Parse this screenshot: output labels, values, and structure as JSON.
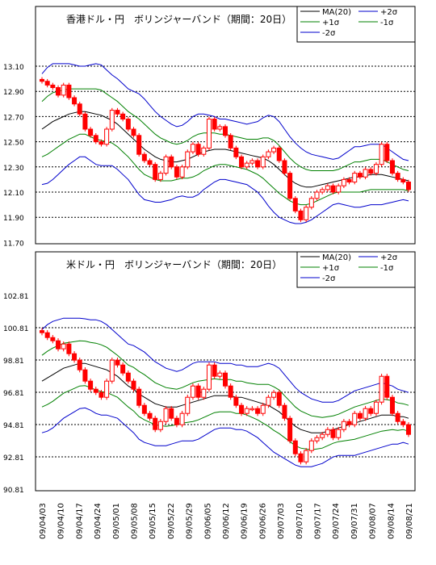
{
  "charts": [
    {
      "title": "香港ドル・円　ボリンジャーバンド（期間：20日）",
      "legend": [
        "MA(20)",
        "+2σ",
        "+1σ",
        "-1σ",
        "-2σ"
      ],
      "yticks": [
        "13.10",
        "12.90",
        "12.70",
        "12.50",
        "12.30",
        "12.10",
        "11.90",
        "11.70"
      ]
    },
    {
      "title": "米ドル・円　ボリンジャーバンド（期間：20日）",
      "legend": [
        "MA(20)",
        "+2σ",
        "+1σ",
        "-1σ",
        "-2σ"
      ],
      "yticks": [
        "102.81",
        "100.81",
        "98.81",
        "96.81",
        "94.81",
        "92.81",
        "90.81"
      ]
    }
  ],
  "xticks": [
    "09/04/03",
    "09/04/10",
    "09/04/17",
    "09/04/24",
    "09/05/01",
    "09/05/08",
    "09/05/15",
    "09/05/22",
    "09/05/29",
    "09/06/05",
    "09/06/12",
    "09/06/19",
    "09/06/26",
    "09/07/03",
    "09/07/10",
    "09/07/17",
    "09/07/24",
    "09/07/31",
    "09/08/07",
    "09/08/14",
    "09/08/21"
  ],
  "colors": {
    "candle": "#ff0000",
    "ma": "#000000",
    "band2": "#0000cc",
    "band1": "#008000",
    "grid": "#000000"
  },
  "chart_data": [
    {
      "type": "candlestick",
      "title": "香港ドル・円　ボリンジャーバンド（期間：20日）",
      "ylim": [
        11.7,
        13.2
      ],
      "series_names": [
        "MA(20)",
        "+2σ",
        "+1σ",
        "-1σ",
        "-2σ"
      ],
      "close": [
        12.98,
        12.95,
        12.93,
        12.87,
        12.95,
        12.85,
        12.8,
        12.72,
        12.6,
        12.55,
        12.5,
        12.48,
        12.6,
        12.75,
        12.72,
        12.68,
        12.6,
        12.55,
        12.4,
        12.35,
        12.32,
        12.2,
        12.25,
        12.38,
        12.3,
        12.22,
        12.3,
        12.42,
        12.48,
        12.4,
        12.45,
        12.68,
        12.6,
        12.62,
        12.55,
        12.45,
        12.38,
        12.3,
        12.33,
        12.35,
        12.3,
        12.38,
        12.42,
        12.45,
        12.35,
        12.25,
        12.05,
        11.95,
        11.88,
        11.98,
        12.05,
        12.1,
        12.12,
        12.15,
        12.1,
        12.15,
        12.2,
        12.18,
        12.25,
        12.22,
        12.28,
        12.25,
        12.32,
        12.48,
        12.35,
        12.25,
        12.2,
        12.18,
        12.12
      ],
      "ma20": [
        12.6,
        12.63,
        12.66,
        12.68,
        12.7,
        12.72,
        12.73,
        12.74,
        12.74,
        12.73,
        12.72,
        12.71,
        12.69,
        12.67,
        12.64,
        12.6,
        12.56,
        12.52,
        12.48,
        12.44,
        12.41,
        12.38,
        12.36,
        12.35,
        12.34,
        12.34,
        12.35,
        12.36,
        12.38,
        12.4,
        12.42,
        12.43,
        12.44,
        12.44,
        12.44,
        12.43,
        12.42,
        12.41,
        12.4,
        12.39,
        12.38,
        12.37,
        12.35,
        12.32,
        12.28,
        12.24,
        12.2,
        12.17,
        12.15,
        12.14,
        12.14,
        12.15,
        12.16,
        12.17,
        12.18,
        12.19,
        12.2,
        12.21,
        12.22,
        12.22,
        12.23,
        12.24,
        12.24,
        12.24,
        12.23,
        12.22,
        12.21,
        12.2,
        12.19
      ],
      "sd": [
        0.22,
        0.23,
        0.23,
        0.22,
        0.21,
        0.2,
        0.19,
        0.18,
        0.18,
        0.19,
        0.2,
        0.2,
        0.19,
        0.18,
        0.18,
        0.18,
        0.18,
        0.19,
        0.2,
        0.2,
        0.19,
        0.18,
        0.17,
        0.16,
        0.15,
        0.14,
        0.14,
        0.15,
        0.16,
        0.16,
        0.15,
        0.14,
        0.13,
        0.12,
        0.12,
        0.12,
        0.12,
        0.12,
        0.12,
        0.13,
        0.14,
        0.16,
        0.18,
        0.19,
        0.19,
        0.18,
        0.17,
        0.16,
        0.15,
        0.14,
        0.13,
        0.12,
        0.11,
        0.1,
        0.09,
        0.09,
        0.1,
        0.11,
        0.12,
        0.12,
        0.12,
        0.12,
        0.12,
        0.12,
        0.11,
        0.1,
        0.09,
        0.08,
        0.08
      ]
    },
    {
      "type": "candlestick",
      "title": "米ドル・円　ボリンジャーバンド（期間：20日）",
      "ylim": [
        90.81,
        103.81
      ],
      "series_names": [
        "MA(20)",
        "+2σ",
        "+1σ",
        "-1σ",
        "-2σ"
      ],
      "close": [
        100.5,
        100.2,
        100.0,
        99.5,
        99.8,
        99.2,
        98.8,
        98.2,
        97.5,
        97.0,
        96.8,
        96.5,
        97.5,
        98.8,
        98.5,
        98.0,
        97.5,
        97.0,
        96.0,
        95.5,
        95.2,
        94.5,
        95.0,
        95.8,
        95.2,
        94.8,
        95.5,
        96.5,
        97.2,
        96.5,
        97.0,
        98.5,
        97.8,
        98.0,
        97.2,
        96.5,
        96.0,
        95.5,
        95.8,
        95.8,
        95.5,
        96.0,
        96.5,
        96.8,
        96.0,
        95.2,
        93.8,
        93.0,
        92.5,
        93.2,
        93.8,
        94.0,
        94.2,
        94.5,
        94.0,
        94.5,
        95.0,
        94.8,
        95.5,
        95.2,
        95.8,
        95.5,
        96.2,
        97.8,
        96.5,
        95.5,
        95.0,
        94.8,
        94.2
      ],
      "ma20": [
        97.5,
        97.7,
        97.9,
        98.1,
        98.3,
        98.4,
        98.5,
        98.6,
        98.6,
        98.5,
        98.4,
        98.3,
        98.2,
        98.0,
        97.8,
        97.5,
        97.2,
        97.0,
        96.7,
        96.5,
        96.3,
        96.1,
        96.0,
        95.9,
        95.9,
        95.9,
        96.0,
        96.1,
        96.2,
        96.3,
        96.4,
        96.5,
        96.6,
        96.6,
        96.6,
        96.6,
        96.5,
        96.5,
        96.4,
        96.3,
        96.2,
        96.1,
        96.0,
        95.8,
        95.6,
        95.3,
        95.0,
        94.7,
        94.5,
        94.4,
        94.3,
        94.3,
        94.3,
        94.4,
        94.5,
        94.6,
        94.7,
        94.8,
        94.9,
        95.0,
        95.1,
        95.2,
        95.3,
        95.4,
        95.4,
        95.4,
        95.3,
        95.3,
        95.2
      ],
      "sd": [
        1.6,
        1.65,
        1.65,
        1.6,
        1.55,
        1.5,
        1.45,
        1.4,
        1.38,
        1.4,
        1.45,
        1.45,
        1.4,
        1.35,
        1.3,
        1.3,
        1.3,
        1.35,
        1.4,
        1.4,
        1.35,
        1.3,
        1.25,
        1.2,
        1.15,
        1.1,
        1.1,
        1.15,
        1.2,
        1.2,
        1.15,
        1.1,
        1.05,
        1.0,
        1.0,
        1.0,
        1.0,
        1.0,
        1.0,
        1.05,
        1.1,
        1.2,
        1.3,
        1.35,
        1.35,
        1.3,
        1.25,
        1.2,
        1.15,
        1.1,
        1.05,
        1.0,
        0.95,
        0.9,
        0.85,
        0.85,
        0.9,
        0.95,
        1.0,
        1.0,
        1.0,
        1.0,
        1.0,
        1.0,
        0.95,
        0.9,
        0.85,
        0.8,
        0.8
      ]
    }
  ]
}
